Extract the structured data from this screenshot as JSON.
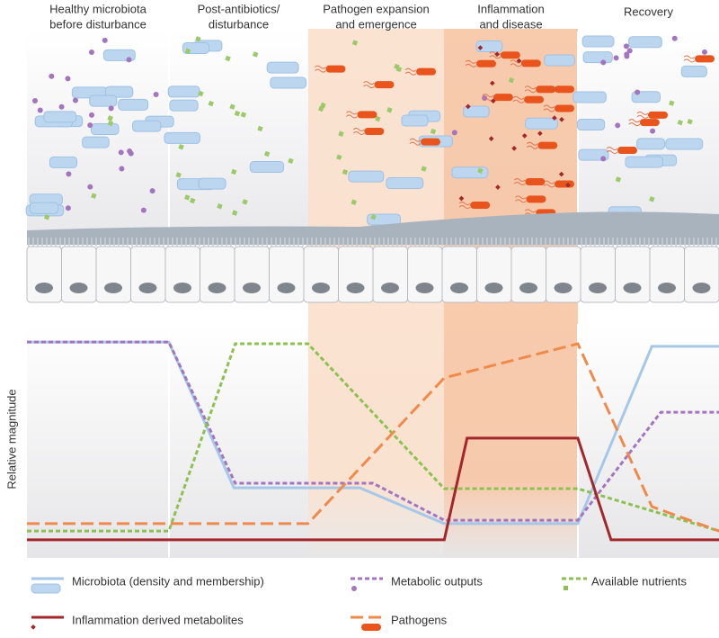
{
  "illustration": {
    "stages": [
      [
        "Healthy microbiota",
        "before disturbance"
      ],
      [
        "Post-antibiotics/",
        "disturbance"
      ],
      [
        "Pathogen expansion",
        "and emergence"
      ],
      [
        "Inflammation",
        "and disease"
      ],
      [
        "Recovery"
      ]
    ]
  },
  "chart_data": {
    "type": "line",
    "ylabel": "Relative magnitude",
    "xlim": [
      0,
      100
    ],
    "ylim": [
      0,
      100
    ],
    "series": [
      {
        "name": "Microbiota (density and membership)",
        "color": "#a6c8e8",
        "dash": "solid",
        "x": [
          0,
          20.5,
          29.9,
          48.1,
          60.3,
          79.6,
          90.3,
          100
        ],
        "values": [
          95.8,
          95.8,
          28.3,
          28.3,
          11.7,
          11.7,
          93.8,
          93.8
        ]
      },
      {
        "name": "Metabolic outputs",
        "color": "#a475bf",
        "dash": "dotted",
        "x": [
          0,
          20.5,
          30.1,
          50,
          60.3,
          79.6,
          91.6,
          100
        ],
        "values": [
          95.8,
          95.8,
          30.4,
          30.4,
          13.3,
          13.3,
          63.3,
          63.3
        ]
      },
      {
        "name": "Available nutrients",
        "color": "#8cc152",
        "dash": "dotted",
        "x": [
          0,
          20.5,
          30.1,
          40.6,
          60.3,
          79.6,
          100
        ],
        "values": [
          8.3,
          8.3,
          95,
          95,
          27.9,
          27.9,
          8.3
        ]
      },
      {
        "name": "Inflammation derived metabolites",
        "color": "#a3262a",
        "dash": "solid",
        "x": [
          0,
          60.3,
          63.6,
          79.6,
          84.4,
          100
        ],
        "values": [
          4.2,
          4.2,
          51.3,
          51.3,
          4.2,
          4.2
        ]
      },
      {
        "name": "Pathogens",
        "color": "#f08a4b",
        "dash": "dashed",
        "x": [
          0,
          40.6,
          60.3,
          79.6,
          90.3,
          100
        ],
        "values": [
          11.7,
          11.7,
          79.2,
          95,
          19.6,
          8.3
        ]
      }
    ]
  }
}
